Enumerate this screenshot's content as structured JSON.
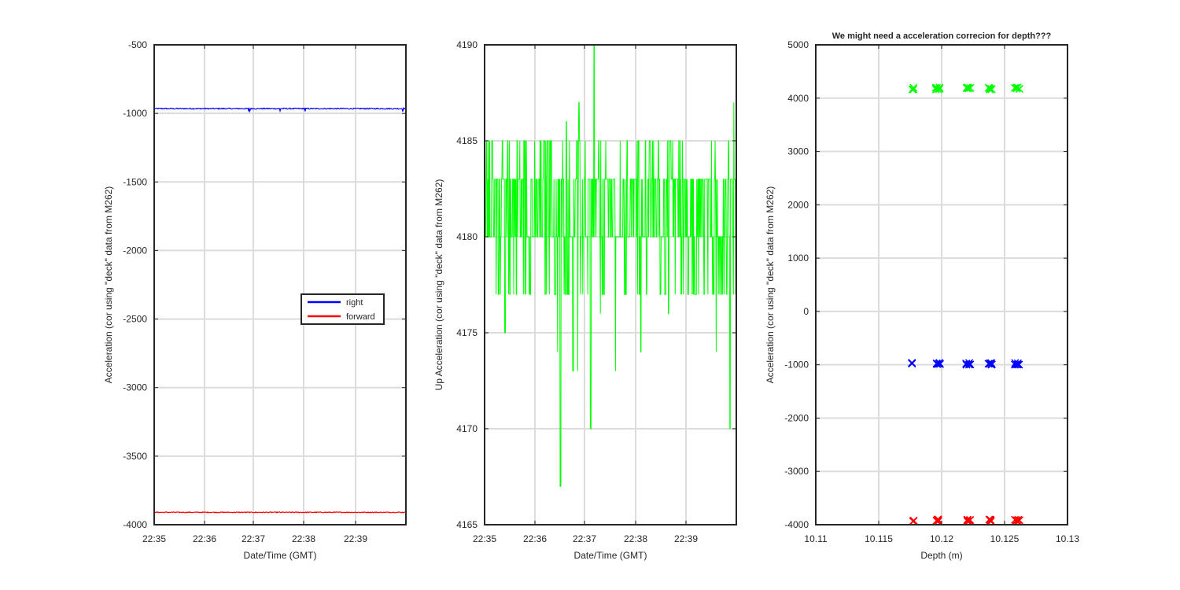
{
  "colors": {
    "right": "#0000ff",
    "forward": "#ff0000",
    "up": "#00ff00",
    "axis": "#262626",
    "grid": "#dcdcdc"
  },
  "chart_data": [
    {
      "type": "line",
      "title": "",
      "xlabel": "Date/Time (GMT)",
      "ylabel": "Acceleration (cor using \"deck\" data from M262)",
      "x_ticks": [
        "22:35",
        "22:36",
        "22:37",
        "22:38",
        "22:39"
      ],
      "y_ticks": [
        "-500",
        "-1000",
        "-1500",
        "-2000",
        "-2500",
        "-3000",
        "-3500",
        "-4000"
      ],
      "xlim_minutes": [
        0,
        5
      ],
      "ylim": [
        -4000,
        -500
      ],
      "grid": true,
      "legend": {
        "placement": "middle-right",
        "entries": [
          "right",
          "forward"
        ]
      },
      "series": [
        {
          "name": "right",
          "color": "#0000ff",
          "level": -965,
          "noise": 8
        },
        {
          "name": "forward",
          "color": "#ff0000",
          "level": -3910,
          "noise": 6
        }
      ]
    },
    {
      "type": "line",
      "title": "",
      "xlabel": "Date/Time (GMT)",
      "ylabel": "Up Acceleration (cor using \"deck\" data from M262)",
      "x_ticks": [
        "22:35",
        "22:36",
        "22:37",
        "22:38",
        "22:39"
      ],
      "y_ticks": [
        "4190",
        "4185",
        "4180",
        "4175",
        "4170",
        "4165"
      ],
      "xlim_minutes": [
        0,
        5
      ],
      "ylim": [
        4165,
        4190
      ],
      "grid": true,
      "series": [
        {
          "name": "",
          "color": "#00ff00",
          "levels": [
            4177,
            4180,
            4183,
            4185
          ]
        }
      ]
    },
    {
      "type": "scatter",
      "title": "We might need a acceleration correcion for depth???",
      "xlabel": "Depth (m)",
      "ylabel": "Acceleration (cor using \"deck\" data from M262)",
      "x_ticks": [
        "10.11",
        "10.115",
        "10.12",
        "10.125",
        "10.13"
      ],
      "y_ticks": [
        "5000",
        "4000",
        "3000",
        "2000",
        "1000",
        "0",
        "-1000",
        "-2000",
        "-3000",
        "-4000"
      ],
      "xlim": [
        10.11,
        10.13
      ],
      "ylim": [
        -4000,
        5000
      ],
      "grid": true,
      "marker": "x",
      "depths": [
        10.1177,
        10.1196,
        10.1198,
        10.122,
        10.1222,
        10.1238,
        10.1239,
        10.1259,
        10.1261
      ],
      "series": [
        {
          "name": "up",
          "color": "#00ff00",
          "value": 4180
        },
        {
          "name": "right",
          "color": "#0000ff",
          "value": -980
        },
        {
          "name": "forward",
          "color": "#ff0000",
          "value": -3920
        }
      ]
    }
  ]
}
